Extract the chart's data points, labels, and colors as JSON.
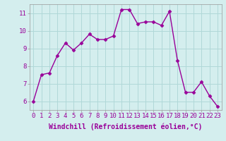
{
  "x": [
    0,
    1,
    2,
    3,
    4,
    5,
    6,
    7,
    8,
    9,
    10,
    11,
    12,
    13,
    14,
    15,
    16,
    17,
    18,
    19,
    20,
    21,
    22,
    23
  ],
  "y": [
    6.0,
    7.5,
    7.6,
    8.6,
    9.3,
    8.9,
    9.3,
    9.8,
    9.5,
    9.5,
    9.7,
    11.2,
    11.2,
    10.4,
    10.5,
    10.5,
    10.3,
    11.1,
    8.3,
    6.5,
    6.5,
    7.1,
    6.3,
    5.7
  ],
  "line_color": "#990099",
  "marker": "D",
  "marker_size": 2.5,
  "bg_color": "#d4eeee",
  "grid_color": "#b0d8d8",
  "xlabel": "Windchill (Refroidissement éolien,°C)",
  "ylim": [
    5.5,
    11.5
  ],
  "xlim": [
    -0.5,
    23.5
  ],
  "yticks": [
    6,
    7,
    8,
    9,
    10,
    11
  ],
  "xticks": [
    0,
    1,
    2,
    3,
    4,
    5,
    6,
    7,
    8,
    9,
    10,
    11,
    12,
    13,
    14,
    15,
    16,
    17,
    18,
    19,
    20,
    21,
    22,
    23
  ],
  "xtick_labels": [
    "0",
    "1",
    "2",
    "3",
    "4",
    "5",
    "6",
    "7",
    "8",
    "9",
    "10",
    "11",
    "12",
    "13",
    "14",
    "15",
    "16",
    "17",
    "18",
    "19",
    "20",
    "21",
    "22",
    "23"
  ],
  "tick_fontsize": 6.5,
  "xlabel_fontsize": 7,
  "line_width": 1.0
}
